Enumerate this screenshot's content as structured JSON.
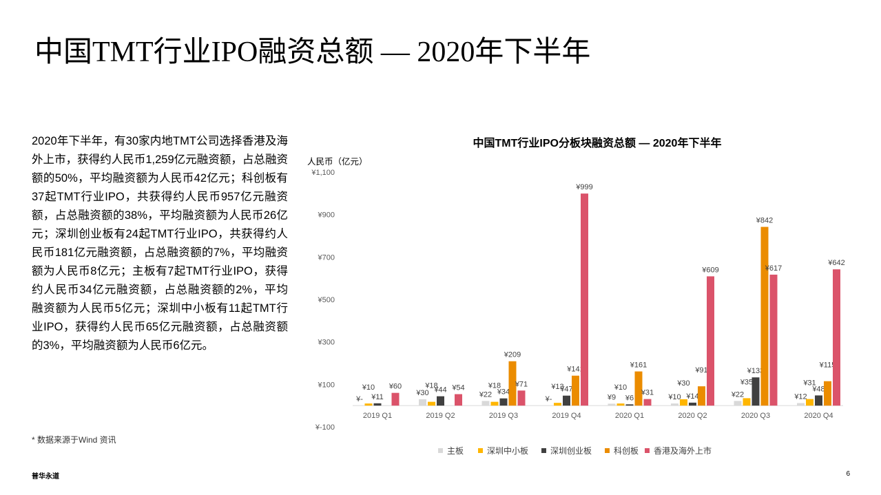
{
  "page": {
    "title": "中国TMT行业IPO融资总额 — 2020年下半年",
    "paragraph": "2020年下半年，有30家内地TMT公司选择香港及海外上市，获得约人民币1,259亿元融资额，占总融资额的50%，平均融资额为人民币42亿元；科创板有37起TMT行业IPO，共获得约人民币957亿元融资额，占总融资额的38%，平均融资额为人民币26亿元；深圳创业板有24起TMT行业IPO，共获得约人民币181亿元融资额，占总融资额的7%，平均融资额为人民币8亿元；主板有7起TMT行业IPO，获得约人民币34亿元融资额，占总融资额的2%，平均融资额为人民币5亿元；深圳中小板有11起TMT行业IPO，获得约人民币65亿元融资额，占总融资额的3%，平均融资额为人民币6亿元。",
    "source_note": "* 数据来源于Wind 资讯",
    "footer_brand": "普华永道",
    "page_number": "6"
  },
  "chart_data": {
    "type": "bar",
    "title": "中国TMT行业IPO分板块融资总额 — 2020年下半年",
    "ylabel": "人民币（亿元）",
    "ylim": [
      -100,
      1100
    ],
    "yticks": [
      -100,
      100,
      300,
      500,
      700,
      900,
      1100
    ],
    "ytick_labels": [
      "¥-100",
      "¥100",
      "¥300",
      "¥500",
      "¥700",
      "¥900",
      "¥1,100"
    ],
    "categories": [
      "2019 Q1",
      "2019 Q2",
      "2019 Q3",
      "2019 Q4",
      "2020 Q1",
      "2020 Q2",
      "2020 Q3",
      "2020 Q4"
    ],
    "series": [
      {
        "name": "主板",
        "color": "#d9d9d9",
        "values": [
          0,
          30,
          22,
          0,
          9,
          10,
          22,
          12
        ],
        "labels": [
          "¥-",
          "¥30",
          "¥22",
          "¥-",
          "¥9",
          "¥10",
          "¥22",
          "¥12"
        ]
      },
      {
        "name": "深圳中小板",
        "color": "#ffb600",
        "values": [
          10,
          18,
          18,
          13,
          10,
          30,
          35,
          31
        ],
        "labels": [
          "¥10",
          "¥18",
          "¥18",
          "¥13",
          "¥10",
          "¥30",
          "¥35",
          "¥31"
        ]
      },
      {
        "name": "深圳创业板",
        "color": "#404040",
        "values": [
          11,
          44,
          34,
          47,
          6,
          14,
          133,
          48
        ],
        "labels": [
          "¥11",
          "¥44",
          "¥34",
          "¥47",
          "¥6",
          "¥14",
          "¥133",
          "¥48"
        ]
      },
      {
        "name": "科创板",
        "color": "#eb8c00",
        "values": [
          0,
          0,
          209,
          141,
          161,
          91,
          842,
          115
        ],
        "labels": [
          "",
          "",
          "¥209",
          "¥141",
          "¥161",
          "¥91",
          "¥842",
          "¥115"
        ]
      },
      {
        "name": "香港及海外上市",
        "color": "#db536a",
        "values": [
          60,
          54,
          71,
          999,
          31,
          609,
          617,
          642
        ],
        "labels": [
          "¥60",
          "¥54",
          "¥71",
          "¥999",
          "¥31",
          "¥609",
          "¥617",
          "¥642"
        ]
      }
    ],
    "grid": false,
    "legend": "bottom"
  }
}
